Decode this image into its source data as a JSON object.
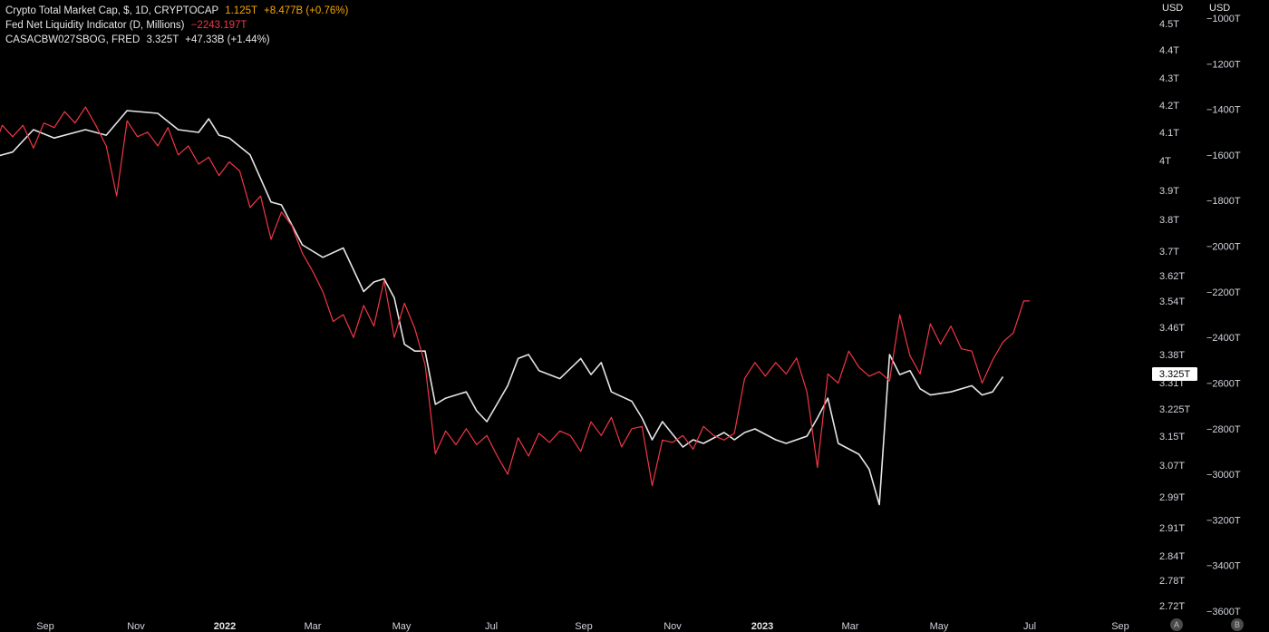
{
  "legend": {
    "crypto": {
      "label": "Crypto Total Market Cap, $, 1D, CRYPTOCAP",
      "value": "1.125T",
      "change": "+8.477B (+0.76%)",
      "color": "#f7a600"
    },
    "fed": {
      "label": "Fed Net Liquidity Indicator (D, Millions)",
      "value": "−2243.197T",
      "color": "#f23645"
    },
    "casa": {
      "label": "CASACBW027SBOG, FRED",
      "value": "3.325T",
      "change": "+47.33B (+1.44%)",
      "color": "#e6e6e6"
    }
  },
  "axes": {
    "left_unit": "USD",
    "right_unit": "USD",
    "left_ticks": [
      "4.5T",
      "4.4T",
      "4.3T",
      "4.2T",
      "4.1T",
      "4T",
      "3.9T",
      "3.8T",
      "3.7T",
      "3.62T",
      "3.54T",
      "3.46T",
      "3.38T",
      "3.31T",
      "3.225T",
      "3.15T",
      "3.07T",
      "2.99T",
      "2.91T",
      "2.84T",
      "2.78T",
      "2.72T"
    ],
    "right_ticks": [
      "−1000T",
      "−1200T",
      "−1400T",
      "−1600T",
      "−1800T",
      "−2000T",
      "−2200T",
      "−2400T",
      "−2600T",
      "−2800T",
      "−3000T",
      "−3200T",
      "−3400T",
      "−3600T"
    ],
    "x_ticks": [
      {
        "label": "Sep",
        "bold": false
      },
      {
        "label": "Nov",
        "bold": false
      },
      {
        "label": "2022",
        "bold": true
      },
      {
        "label": "Mar",
        "bold": false
      },
      {
        "label": "May",
        "bold": false
      },
      {
        "label": "Jul",
        "bold": false
      },
      {
        "label": "Sep",
        "bold": false
      },
      {
        "label": "Nov",
        "bold": false
      },
      {
        "label": "2023",
        "bold": true
      },
      {
        "label": "Mar",
        "bold": false
      },
      {
        "label": "May",
        "bold": false
      },
      {
        "label": "Jul",
        "bold": false
      },
      {
        "label": "Sep",
        "bold": false
      }
    ],
    "current_value_badge": "3.325T",
    "buttons": [
      "A",
      "B"
    ]
  },
  "chart_data": {
    "type": "line",
    "title": "",
    "xlabel": "",
    "ylabel": "USD",
    "x_range": [
      "2021-07-20",
      "2023-10-10"
    ],
    "y_left_range": [
      2.7,
      4.52
    ],
    "y_right_range": [
      -3650,
      -1000
    ],
    "series": [
      {
        "name": "CASACBW027SBOG, FRED",
        "color": "#e6e6e6",
        "axis": "left",
        "points": [
          [
            "2021-07-20",
            4.0
          ],
          [
            "2021-08-10",
            4.03
          ],
          [
            "2021-08-24",
            4.11
          ],
          [
            "2021-09-07",
            4.08
          ],
          [
            "2021-09-28",
            4.11
          ],
          [
            "2021-10-12",
            4.09
          ],
          [
            "2021-10-26",
            4.18
          ],
          [
            "2021-11-16",
            4.17
          ],
          [
            "2021-11-30",
            4.11
          ],
          [
            "2021-12-14",
            4.1
          ],
          [
            "2021-12-21",
            4.15
          ],
          [
            "2021-12-28",
            4.09
          ],
          [
            "2022-01-04",
            4.08
          ],
          [
            "2022-01-18",
            4.02
          ],
          [
            "2022-02-01",
            3.86
          ],
          [
            "2022-02-08",
            3.85
          ],
          [
            "2022-02-22",
            3.72
          ],
          [
            "2022-03-08",
            3.68
          ],
          [
            "2022-03-22",
            3.71
          ],
          [
            "2022-04-05",
            3.57
          ],
          [
            "2022-04-12",
            3.6
          ],
          [
            "2022-04-19",
            3.61
          ],
          [
            "2022-04-26",
            3.55
          ],
          [
            "2022-05-03",
            3.41
          ],
          [
            "2022-05-10",
            3.39
          ],
          [
            "2022-05-17",
            3.39
          ],
          [
            "2022-05-24",
            3.24
          ],
          [
            "2022-05-31",
            3.26
          ],
          [
            "2022-06-14",
            3.28
          ],
          [
            "2022-06-21",
            3.22
          ],
          [
            "2022-06-28",
            3.19
          ],
          [
            "2022-07-12",
            3.3
          ],
          [
            "2022-07-19",
            3.37
          ],
          [
            "2022-07-26",
            3.38
          ],
          [
            "2022-08-02",
            3.34
          ],
          [
            "2022-08-16",
            3.32
          ],
          [
            "2022-08-30",
            3.37
          ],
          [
            "2022-09-06",
            3.33
          ],
          [
            "2022-09-13",
            3.36
          ],
          [
            "2022-09-20",
            3.28
          ],
          [
            "2022-10-04",
            3.25
          ],
          [
            "2022-10-11",
            3.2
          ],
          [
            "2022-10-18",
            3.14
          ],
          [
            "2022-10-25",
            3.19
          ],
          [
            "2022-11-08",
            3.12
          ],
          [
            "2022-11-15",
            3.14
          ],
          [
            "2022-11-22",
            3.13
          ],
          [
            "2022-12-06",
            3.16
          ],
          [
            "2022-12-13",
            3.14
          ],
          [
            "2022-12-20",
            3.16
          ],
          [
            "2022-12-27",
            3.17
          ],
          [
            "2023-01-10",
            3.14
          ],
          [
            "2023-01-17",
            3.13
          ],
          [
            "2023-01-31",
            3.15
          ],
          [
            "2023-02-07",
            3.2
          ],
          [
            "2023-02-14",
            3.26
          ],
          [
            "2023-02-21",
            3.13
          ],
          [
            "2023-03-07",
            3.1
          ],
          [
            "2023-03-14",
            3.06
          ],
          [
            "2023-03-21",
            2.97
          ],
          [
            "2023-03-28",
            3.38
          ],
          [
            "2023-04-04",
            3.33
          ],
          [
            "2023-04-11",
            3.34
          ],
          [
            "2023-04-18",
            3.29
          ],
          [
            "2023-04-25",
            3.27
          ],
          [
            "2023-05-09",
            3.28
          ],
          [
            "2023-05-23",
            3.3
          ],
          [
            "2023-05-30",
            3.27
          ],
          [
            "2023-06-06",
            3.28
          ],
          [
            "2023-06-13",
            3.325
          ]
        ]
      },
      {
        "name": "Fed Net Liquidity Indicator (D, Millions)",
        "color": "#f23645",
        "axis": "right",
        "points": [
          [
            "2021-07-20",
            -1640
          ],
          [
            "2021-07-27",
            -1590
          ],
          [
            "2021-08-03",
            -1470
          ],
          [
            "2021-08-10",
            -1520
          ],
          [
            "2021-08-17",
            -1470
          ],
          [
            "2021-08-24",
            -1570
          ],
          [
            "2021-08-31",
            -1460
          ],
          [
            "2021-09-07",
            -1480
          ],
          [
            "2021-09-14",
            -1410
          ],
          [
            "2021-09-21",
            -1460
          ],
          [
            "2021-09-28",
            -1390
          ],
          [
            "2021-10-05",
            -1470
          ],
          [
            "2021-10-12",
            -1560
          ],
          [
            "2021-10-19",
            -1780
          ],
          [
            "2021-10-26",
            -1450
          ],
          [
            "2021-11-02",
            -1520
          ],
          [
            "2021-11-09",
            -1500
          ],
          [
            "2021-11-16",
            -1560
          ],
          [
            "2021-11-23",
            -1480
          ],
          [
            "2021-11-30",
            -1600
          ],
          [
            "2021-12-07",
            -1560
          ],
          [
            "2021-12-14",
            -1640
          ],
          [
            "2021-12-21",
            -1610
          ],
          [
            "2021-12-28",
            -1690
          ],
          [
            "2022-01-04",
            -1630
          ],
          [
            "2022-01-11",
            -1670
          ],
          [
            "2022-01-18",
            -1830
          ],
          [
            "2022-01-25",
            -1780
          ],
          [
            "2022-02-01",
            -1970
          ],
          [
            "2022-02-08",
            -1850
          ],
          [
            "2022-02-15",
            -1910
          ],
          [
            "2022-02-22",
            -2030
          ],
          [
            "2022-03-01",
            -2110
          ],
          [
            "2022-03-08",
            -2200
          ],
          [
            "2022-03-15",
            -2330
          ],
          [
            "2022-03-22",
            -2300
          ],
          [
            "2022-03-29",
            -2400
          ],
          [
            "2022-04-05",
            -2260
          ],
          [
            "2022-04-12",
            -2350
          ],
          [
            "2022-04-19",
            -2150
          ],
          [
            "2022-04-26",
            -2400
          ],
          [
            "2022-05-03",
            -2250
          ],
          [
            "2022-05-10",
            -2360
          ],
          [
            "2022-05-17",
            -2520
          ],
          [
            "2022-05-24",
            -2910
          ],
          [
            "2022-05-31",
            -2810
          ],
          [
            "2022-06-07",
            -2870
          ],
          [
            "2022-06-14",
            -2800
          ],
          [
            "2022-06-21",
            -2870
          ],
          [
            "2022-06-28",
            -2830
          ],
          [
            "2022-07-05",
            -2920
          ],
          [
            "2022-07-12",
            -3000
          ],
          [
            "2022-07-19",
            -2840
          ],
          [
            "2022-07-26",
            -2920
          ],
          [
            "2022-08-02",
            -2820
          ],
          [
            "2022-08-09",
            -2860
          ],
          [
            "2022-08-16",
            -2810
          ],
          [
            "2022-08-23",
            -2830
          ],
          [
            "2022-08-30",
            -2900
          ],
          [
            "2022-09-06",
            -2770
          ],
          [
            "2022-09-13",
            -2830
          ],
          [
            "2022-09-20",
            -2750
          ],
          [
            "2022-09-27",
            -2880
          ],
          [
            "2022-10-04",
            -2800
          ],
          [
            "2022-10-11",
            -2790
          ],
          [
            "2022-10-18",
            -3050
          ],
          [
            "2022-10-25",
            -2850
          ],
          [
            "2022-11-01",
            -2860
          ],
          [
            "2022-11-08",
            -2830
          ],
          [
            "2022-11-15",
            -2890
          ],
          [
            "2022-11-22",
            -2790
          ],
          [
            "2022-11-29",
            -2830
          ],
          [
            "2022-12-06",
            -2850
          ],
          [
            "2022-12-13",
            -2820
          ],
          [
            "2022-12-20",
            -2580
          ],
          [
            "2022-12-27",
            -2510
          ],
          [
            "2023-01-03",
            -2570
          ],
          [
            "2023-01-10",
            -2510
          ],
          [
            "2023-01-17",
            -2560
          ],
          [
            "2023-01-24",
            -2490
          ],
          [
            "2023-01-31",
            -2640
          ],
          [
            "2023-02-07",
            -2970
          ],
          [
            "2023-02-14",
            -2560
          ],
          [
            "2023-02-21",
            -2600
          ],
          [
            "2023-02-28",
            -2460
          ],
          [
            "2023-03-07",
            -2530
          ],
          [
            "2023-03-14",
            -2570
          ],
          [
            "2023-03-21",
            -2550
          ],
          [
            "2023-03-28",
            -2590
          ],
          [
            "2023-04-04",
            -2300
          ],
          [
            "2023-04-11",
            -2480
          ],
          [
            "2023-04-18",
            -2560
          ],
          [
            "2023-04-25",
            -2340
          ],
          [
            "2023-05-02",
            -2430
          ],
          [
            "2023-05-09",
            -2350
          ],
          [
            "2023-05-16",
            -2450
          ],
          [
            "2023-05-23",
            -2460
          ],
          [
            "2023-05-30",
            -2600
          ],
          [
            "2023-06-06",
            -2500
          ],
          [
            "2023-06-13",
            -2420
          ],
          [
            "2023-06-20",
            -2380
          ],
          [
            "2023-06-27",
            -2240
          ],
          [
            "2023-07-01",
            -2240
          ]
        ]
      }
    ],
    "current_value_badge": "3.325T",
    "grid": false,
    "legend_position": "top-left"
  }
}
